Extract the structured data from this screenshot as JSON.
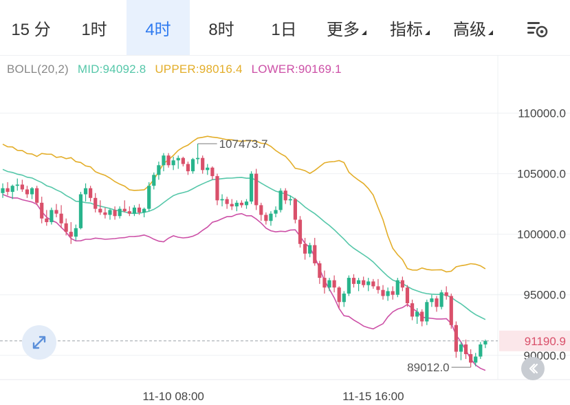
{
  "tabs": [
    {
      "label": "15 分",
      "active": false
    },
    {
      "label": "1时",
      "active": false
    },
    {
      "label": "4时",
      "active": true
    },
    {
      "label": "8时",
      "active": false
    },
    {
      "label": "1日",
      "active": false
    },
    {
      "label": "更多",
      "active": false,
      "dropdown": true
    },
    {
      "label": "指标",
      "active": false,
      "dropdown": true
    },
    {
      "label": "高级",
      "active": false,
      "dropdown": true
    }
  ],
  "settings_icon": "chart-settings-icon",
  "boll": {
    "name": "BOLL(20,2)",
    "mid": "MID:94092.8",
    "upper": "UPPER:98016.4",
    "lower": "LOWER:90169.1"
  },
  "colors": {
    "up": "#28b48c",
    "down": "#d9506a",
    "mid": "#55c7a9",
    "upper": "#e3ad28",
    "lower": "#cc4fa6",
    "active_tab": "#2f7bf0",
    "price_tag_bg": "#fbe7ea",
    "price_tag_text": "#d9506a"
  },
  "chart_data": {
    "type": "candlestick",
    "y_axis": {
      "min": 88000,
      "max": 114800,
      "ticks": [
        "110000.0",
        "105000.0",
        "100000.0",
        "95000.0",
        "90000.0"
      ]
    },
    "x_axis": {
      "ticks": [
        "11-10 08:00",
        "11-15 16:00"
      ]
    },
    "high_label": "107473.7",
    "low_label": "89012.0",
    "last_price": "91190.9",
    "candles": [
      [
        103400,
        104200,
        103000,
        103800
      ],
      [
        103800,
        104300,
        103200,
        103500
      ],
      [
        103500,
        104100,
        102900,
        104000
      ],
      [
        104000,
        104600,
        103600,
        104100
      ],
      [
        104100,
        104500,
        103500,
        103700
      ],
      [
        103700,
        104000,
        103000,
        103300
      ],
      [
        103300,
        103900,
        102900,
        103800
      ],
      [
        103800,
        104000,
        102400,
        102600
      ],
      [
        102600,
        103100,
        100900,
        101300
      ],
      [
        101300,
        102000,
        100700,
        101000
      ],
      [
        101000,
        102200,
        100800,
        102000
      ],
      [
        102000,
        102500,
        101400,
        101700
      ],
      [
        101700,
        102400,
        100500,
        100900
      ],
      [
        100900,
        101300,
        99900,
        100200
      ],
      [
        100200,
        101000,
        99200,
        99800
      ],
      [
        99800,
        100800,
        99500,
        100500
      ],
      [
        100500,
        103500,
        100400,
        103300
      ],
      [
        103300,
        104200,
        102700,
        103800
      ],
      [
        103800,
        104000,
        102700,
        103000
      ],
      [
        103000,
        103400,
        101800,
        102100
      ],
      [
        102100,
        102800,
        101600,
        101800
      ],
      [
        101800,
        102200,
        101300,
        101600
      ],
      [
        101600,
        102100,
        101200,
        102000
      ],
      [
        102000,
        102300,
        101200,
        101500
      ],
      [
        101500,
        102300,
        101300,
        102100
      ],
      [
        102100,
        102800,
        101800,
        101900
      ],
      [
        101900,
        102300,
        101500,
        101700
      ],
      [
        101700,
        102400,
        101500,
        102200
      ],
      [
        102200,
        102500,
        101600,
        101800
      ],
      [
        101800,
        102200,
        101400,
        102100
      ],
      [
        102100,
        104300,
        101900,
        104000
      ],
      [
        104000,
        105100,
        103700,
        104900
      ],
      [
        104900,
        106000,
        104500,
        105700
      ],
      [
        105700,
        106700,
        105200,
        106500
      ],
      [
        106500,
        106700,
        105500,
        105700
      ],
      [
        105700,
        106400,
        105300,
        106100
      ],
      [
        106100,
        106500,
        105400,
        106300
      ],
      [
        106300,
        106400,
        105600,
        105800
      ],
      [
        105800,
        106000,
        104900,
        105200
      ],
      [
        105200,
        106300,
        105000,
        106200
      ],
      [
        106200,
        107473.7,
        105800,
        106300
      ],
      [
        106300,
        106500,
        105000,
        105300
      ],
      [
        105300,
        105800,
        104900,
        105500
      ],
      [
        105500,
        105600,
        104500,
        104800
      ],
      [
        104800,
        105000,
        102400,
        102800
      ],
      [
        102800,
        103300,
        102300,
        102900
      ],
      [
        102900,
        103100,
        102100,
        102500
      ],
      [
        102500,
        102900,
        102000,
        102300
      ],
      [
        102300,
        102800,
        101900,
        102600
      ],
      [
        102600,
        102800,
        102200,
        102400
      ],
      [
        102400,
        102900,
        102100,
        102700
      ],
      [
        102700,
        105200,
        102500,
        105000
      ],
      [
        105000,
        105400,
        102000,
        102400
      ],
      [
        102400,
        102600,
        101100,
        101600
      ],
      [
        101600,
        101800,
        100800,
        101100
      ],
      [
        101100,
        101900,
        100700,
        101700
      ],
      [
        101700,
        102300,
        101400,
        102000
      ],
      [
        102000,
        103800,
        101800,
        103600
      ],
      [
        103600,
        103800,
        102500,
        102800
      ],
      [
        102800,
        103200,
        102400,
        102900
      ],
      [
        102900,
        103000,
        100900,
        101200
      ],
      [
        101200,
        101500,
        98900,
        99200
      ],
      [
        99200,
        99700,
        97900,
        98400
      ],
      [
        98400,
        99300,
        98100,
        99100
      ],
      [
        99100,
        99700,
        97400,
        97600
      ],
      [
        97600,
        97800,
        95900,
        96400
      ],
      [
        96400,
        97000,
        95100,
        95600
      ],
      [
        95600,
        96400,
        95300,
        96200
      ],
      [
        96200,
        96600,
        95200,
        95600
      ],
      [
        95600,
        95700,
        93900,
        94400
      ],
      [
        94400,
        95300,
        94000,
        95100
      ],
      [
        95100,
        96600,
        94900,
        96400
      ],
      [
        96400,
        96700,
        95600,
        95900
      ],
      [
        95900,
        96400,
        95300,
        96200
      ],
      [
        96200,
        96500,
        95600,
        95800
      ],
      [
        95800,
        96400,
        95300,
        96100
      ],
      [
        96100,
        96300,
        95500,
        95700
      ],
      [
        95700,
        96300,
        95100,
        95400
      ],
      [
        95400,
        95800,
        94600,
        94900
      ],
      [
        94900,
        95600,
        94500,
        95300
      ],
      [
        95300,
        95700,
        94600,
        95000
      ],
      [
        95000,
        96400,
        94800,
        96200
      ],
      [
        96200,
        96500,
        95300,
        95600
      ],
      [
        95600,
        95800,
        94000,
        94300
      ],
      [
        94300,
        94600,
        92900,
        93200
      ],
      [
        93200,
        93900,
        92600,
        93600
      ],
      [
        93600,
        93800,
        92400,
        92800
      ],
      [
        92800,
        94600,
        92500,
        94400
      ],
      [
        94400,
        95000,
        94000,
        94700
      ],
      [
        94700,
        94900,
        93600,
        94000
      ],
      [
        94000,
        95400,
        93800,
        95200
      ],
      [
        95200,
        95700,
        94600,
        94900
      ],
      [
        94900,
        95100,
        92200,
        92500
      ],
      [
        92500,
        92800,
        89800,
        90300
      ],
      [
        90300,
        91100,
        89600,
        90900
      ],
      [
        90900,
        91300,
        89700,
        90100
      ],
      [
        90100,
        90500,
        89012,
        89400
      ],
      [
        89400,
        90200,
        89100,
        89900
      ],
      [
        89900,
        91100,
        89700,
        90900
      ],
      [
        90900,
        91300,
        90600,
        91190.9
      ]
    ]
  }
}
